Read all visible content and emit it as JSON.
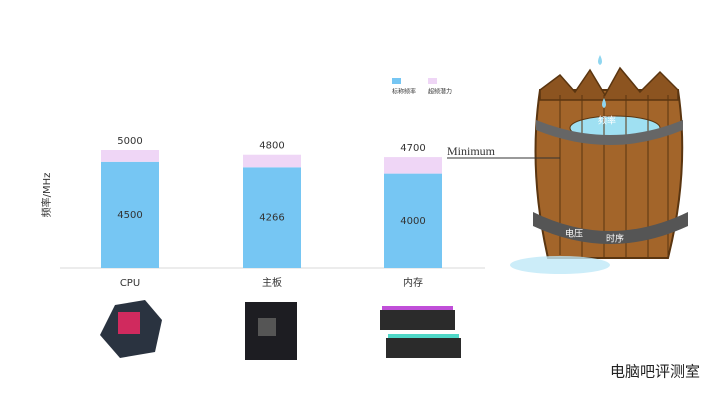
{
  "chart_data": {
    "type": "stacked-bar",
    "y_label": "频率/MHz",
    "categories": [
      "CPU",
      "主板",
      "内存"
    ],
    "series": [
      {
        "name": "标称频率",
        "color": "#76c6f3",
        "values": [
          4500,
          4266,
          4000
        ]
      },
      {
        "name": "超频潜力",
        "color": "#efd6f6",
        "values": [
          500,
          534,
          700
        ]
      }
    ],
    "totals": [
      5000,
      4800,
      4700
    ],
    "ylim": [
      0,
      10000
    ],
    "legend": "top-right",
    "annotations": {
      "threshold": "Minimum",
      "water": "频率",
      "voltage": "电压",
      "timing": "时序"
    },
    "watermark": "电脑吧评测室"
  }
}
